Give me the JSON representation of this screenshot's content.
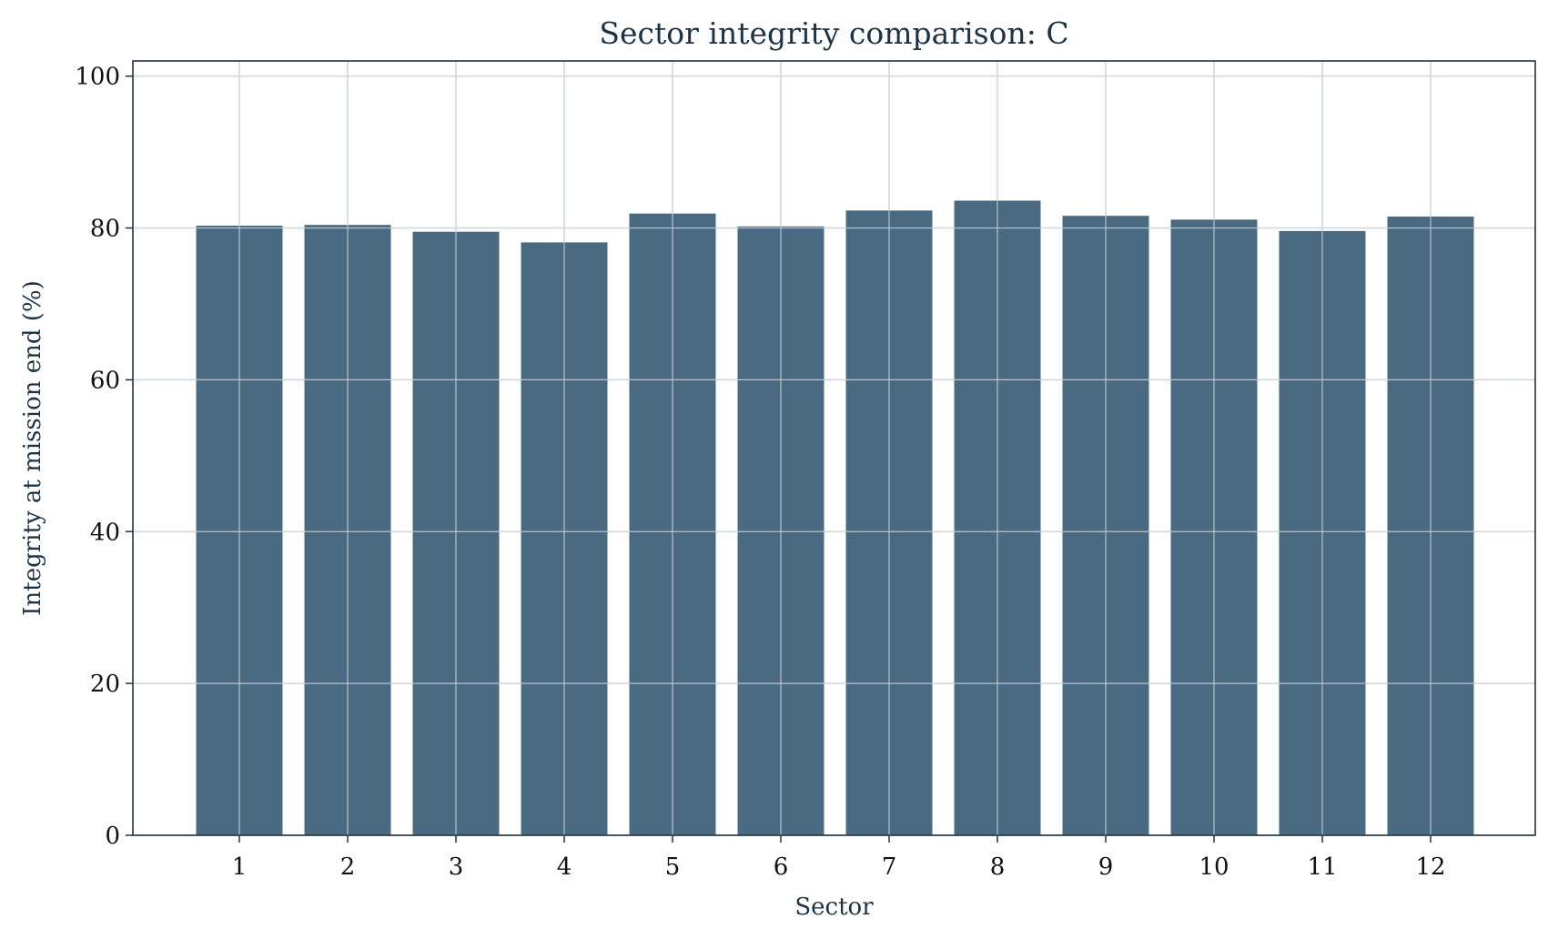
{
  "chart_data": {
    "type": "bar",
    "title": "Sector integrity comparison: C",
    "xlabel": "Sector",
    "ylabel": "Integrity at mission end (%)",
    "categories": [
      "1",
      "2",
      "3",
      "4",
      "5",
      "6",
      "7",
      "8",
      "9",
      "10",
      "11",
      "12"
    ],
    "values": [
      80.3,
      80.4,
      79.5,
      78.1,
      81.9,
      80.2,
      82.3,
      83.6,
      81.6,
      81.1,
      79.6,
      81.5
    ],
    "ylim": [
      0,
      102
    ],
    "yticks": [
      0,
      20,
      40,
      60,
      80,
      100
    ],
    "grid": true,
    "colors": {
      "bar": "#4a6a82",
      "grid": "#dde3e8",
      "axis": "#1e3445",
      "title": "#1e3445",
      "tick_label": "#111111"
    }
  }
}
